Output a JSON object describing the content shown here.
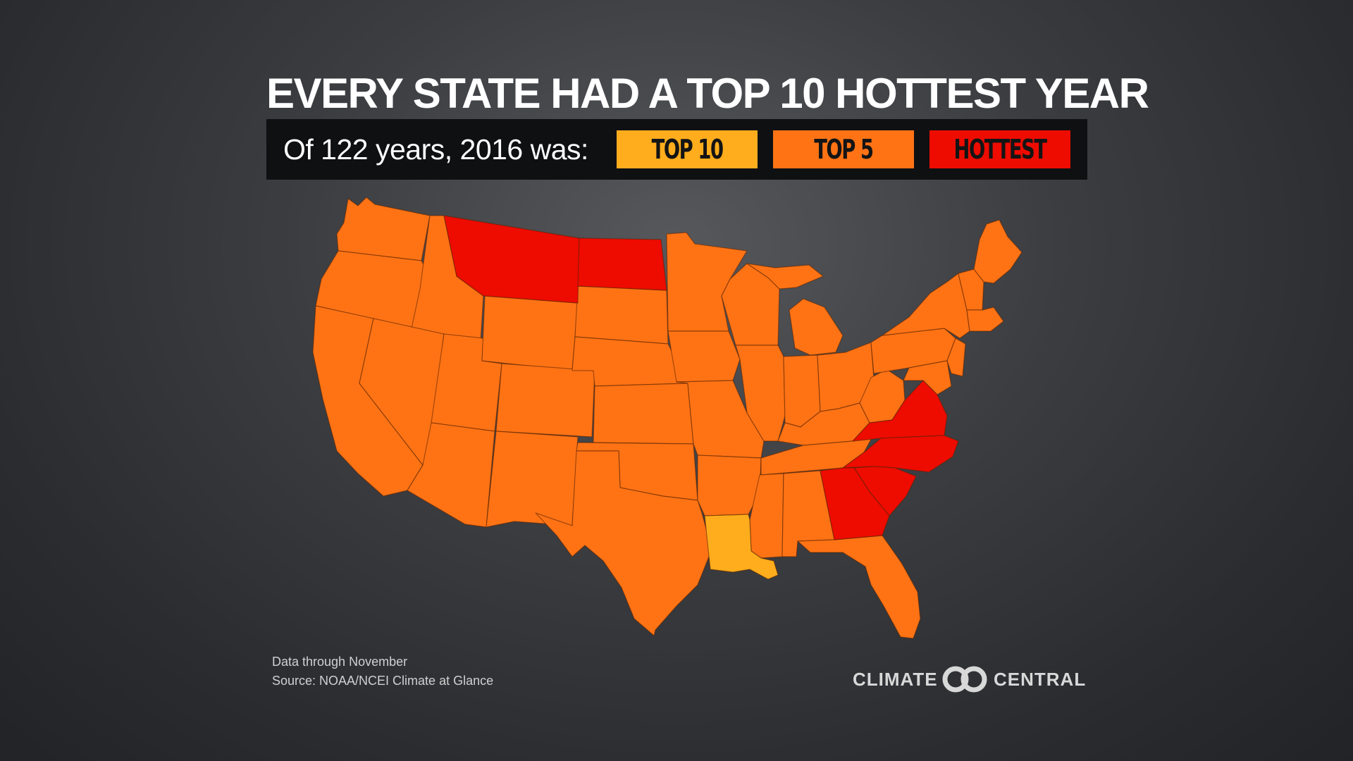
{
  "title": "EVERY STATE HAD A TOP 10 HOTTEST YEAR",
  "legend": {
    "intro": "Of 122 years, 2016 was:",
    "items": [
      {
        "label": "TOP 10",
        "color": "#ffad1c"
      },
      {
        "label": "TOP 5",
        "color": "#ff7315"
      },
      {
        "label": "HOTTEST",
        "color": "#ee0b00"
      }
    ]
  },
  "map": {
    "region": "Contiguous United States",
    "category_colors": {
      "top10": "#ffad1c",
      "top5": "#ff7315",
      "hottest": "#ee0b00"
    },
    "hottest_states": [
      "Montana",
      "North Dakota",
      "Virginia",
      "North Carolina",
      "South Carolina",
      "Georgia"
    ],
    "top10_states": [
      "Louisiana"
    ],
    "top5_states": "all other states"
  },
  "footer": {
    "line1": "Data through November",
    "line2": "Source: NOAA/NCEI Climate at Glance"
  },
  "logo": {
    "left": "CLIMATE",
    "right": "CENTRAL"
  }
}
